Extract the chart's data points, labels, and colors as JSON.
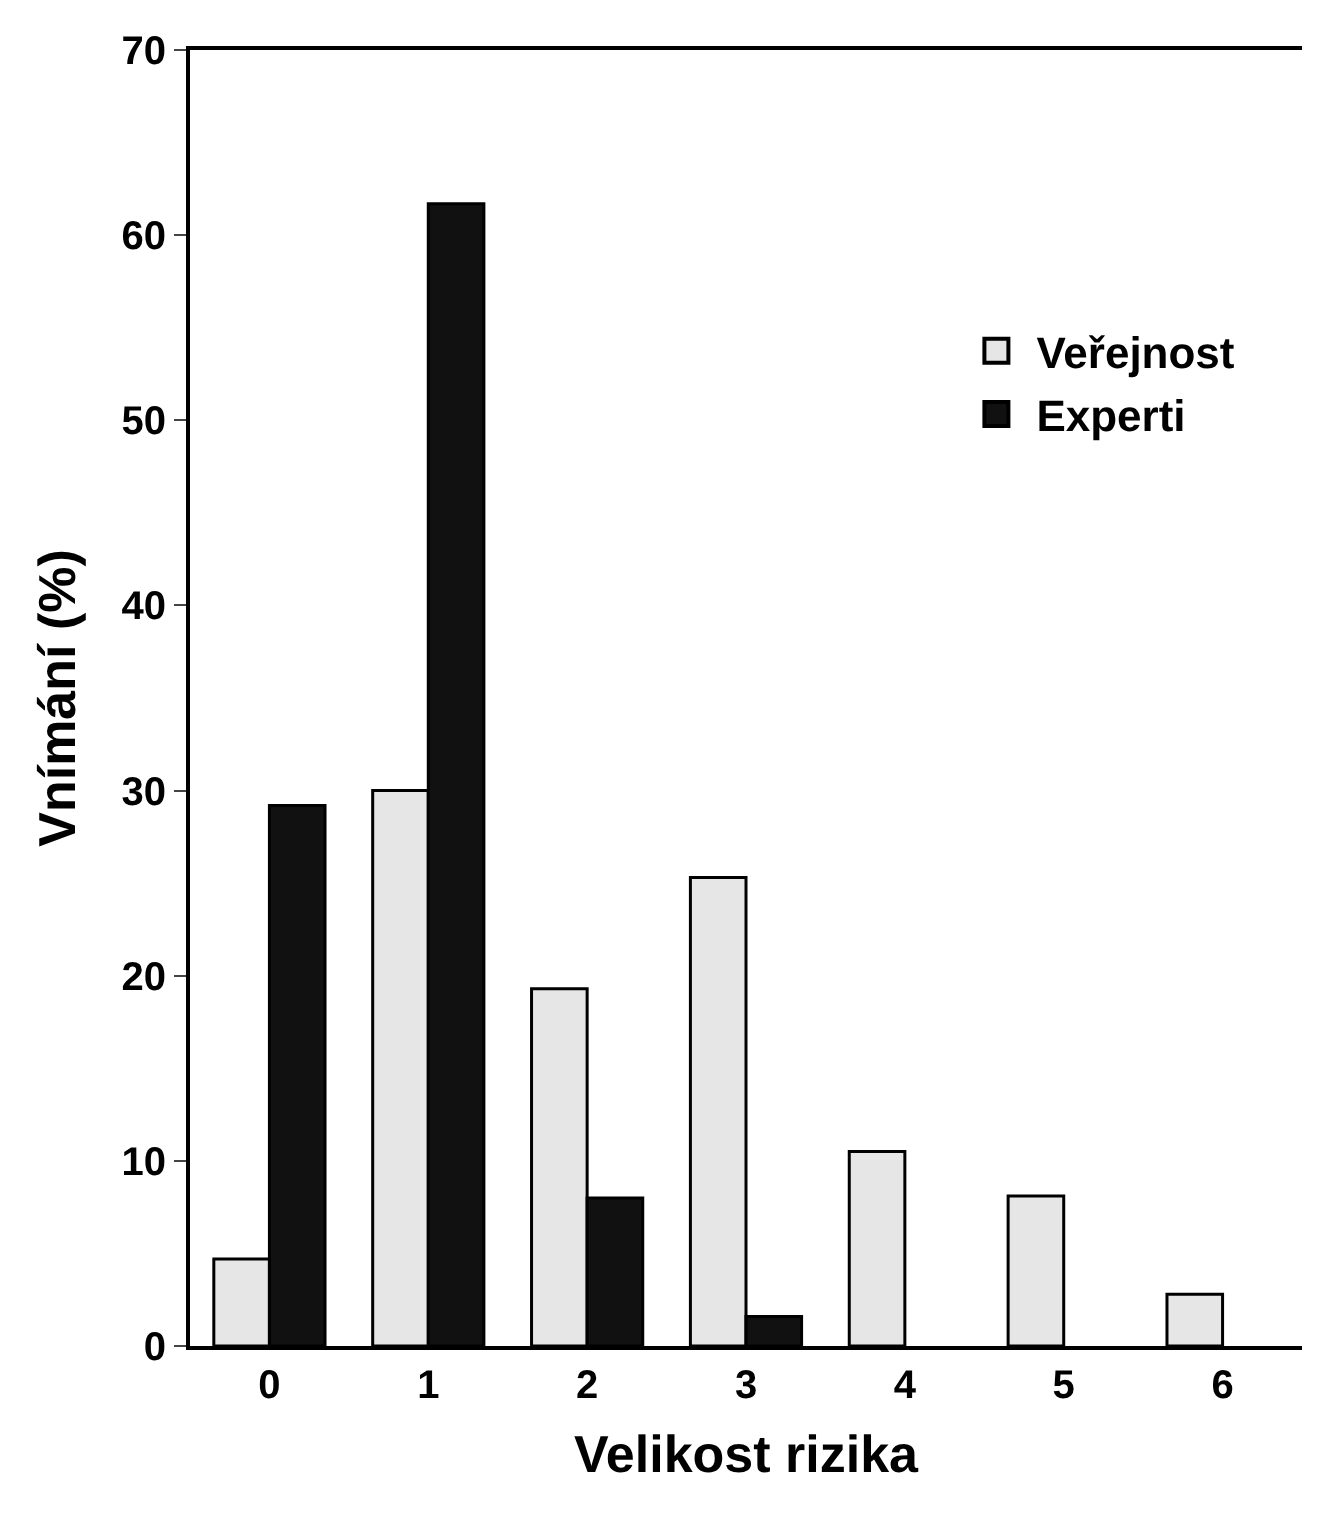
{
  "chart_data": {
    "type": "bar",
    "xlabel": "Velikost rizika",
    "ylabel": "Vnímání (%)",
    "categories": [
      "0",
      "1",
      "2",
      "3",
      "4",
      "5",
      "6"
    ],
    "series": [
      {
        "name": "Veřejnost",
        "color": "#e6e6e6",
        "values": [
          4.7,
          30,
          19.3,
          25.3,
          10.5,
          8.1,
          2.8
        ]
      },
      {
        "name": "Experti",
        "color": "#111111",
        "values": [
          29.2,
          61.7,
          8,
          1.6,
          null,
          null,
          null
        ]
      }
    ],
    "ylim": [
      0,
      70
    ],
    "yticks": [
      0,
      10,
      20,
      30,
      40,
      50,
      60,
      70
    ],
    "legend": "top right"
  }
}
